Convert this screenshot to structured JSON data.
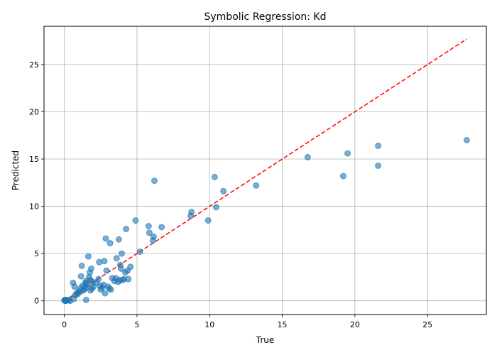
{
  "chart_data": {
    "type": "scatter",
    "title": "Symbolic Regression: Kd",
    "xlabel": "True",
    "ylabel": "Predicted",
    "xlim": [
      -1.4,
      29.05
    ],
    "ylim": [
      -1.45,
      29.05
    ],
    "xticks": [
      0,
      5,
      10,
      15,
      20,
      25
    ],
    "yticks": [
      0,
      5,
      10,
      15,
      20,
      25
    ],
    "grid": true,
    "point_color": "#1f77b4",
    "point_alpha": 0.6,
    "reference_line": {
      "style": "dashed",
      "color": "#ff0000",
      "x": [
        0,
        27.7
      ],
      "y": [
        0,
        27.7
      ]
    },
    "points": [
      {
        "x": 0.0,
        "y": 0.05
      },
      {
        "x": 0.05,
        "y": 0.1
      },
      {
        "x": 0.1,
        "y": 0.0
      },
      {
        "x": 0.2,
        "y": 0.05
      },
      {
        "x": 0.3,
        "y": 0.1
      },
      {
        "x": 0.4,
        "y": 0.0
      },
      {
        "x": 0.05,
        "y": 0.0
      },
      {
        "x": 0.15,
        "y": 0.08
      },
      {
        "x": 0.65,
        "y": 0.2
      },
      {
        "x": 0.6,
        "y": 1.9
      },
      {
        "x": 0.7,
        "y": 1.5
      },
      {
        "x": 0.75,
        "y": 0.6
      },
      {
        "x": 0.85,
        "y": 0.8
      },
      {
        "x": 0.9,
        "y": 0.7
      },
      {
        "x": 1.0,
        "y": 1.0
      },
      {
        "x": 1.05,
        "y": 0.9
      },
      {
        "x": 1.1,
        "y": 1.3
      },
      {
        "x": 1.15,
        "y": 2.6
      },
      {
        "x": 1.2,
        "y": 3.7
      },
      {
        "x": 1.25,
        "y": 1.6
      },
      {
        "x": 1.3,
        "y": 1.1
      },
      {
        "x": 1.35,
        "y": 1.2
      },
      {
        "x": 1.4,
        "y": 1.5
      },
      {
        "x": 1.45,
        "y": 1.9
      },
      {
        "x": 1.5,
        "y": 2.1
      },
      {
        "x": 1.5,
        "y": 0.1
      },
      {
        "x": 1.55,
        "y": 1.4
      },
      {
        "x": 1.6,
        "y": 1.8
      },
      {
        "x": 1.65,
        "y": 4.7
      },
      {
        "x": 1.7,
        "y": 2.5
      },
      {
        "x": 1.75,
        "y": 3.0
      },
      {
        "x": 1.8,
        "y": 2.2
      },
      {
        "x": 1.8,
        "y": 1.1
      },
      {
        "x": 1.85,
        "y": 3.4
      },
      {
        "x": 1.9,
        "y": 1.3
      },
      {
        "x": 1.95,
        "y": 2.0
      },
      {
        "x": 2.0,
        "y": 1.5
      },
      {
        "x": 2.2,
        "y": 1.9
      },
      {
        "x": 2.35,
        "y": 2.3
      },
      {
        "x": 2.4,
        "y": 4.1
      },
      {
        "x": 2.45,
        "y": 1.6
      },
      {
        "x": 2.5,
        "y": 1.2
      },
      {
        "x": 2.6,
        "y": 1.4
      },
      {
        "x": 2.7,
        "y": 1.7
      },
      {
        "x": 2.75,
        "y": 4.2
      },
      {
        "x": 2.8,
        "y": 0.8
      },
      {
        "x": 2.85,
        "y": 6.6
      },
      {
        "x": 2.9,
        "y": 3.2
      },
      {
        "x": 3.0,
        "y": 1.5
      },
      {
        "x": 3.1,
        "y": 1.3
      },
      {
        "x": 3.15,
        "y": 6.1
      },
      {
        "x": 3.2,
        "y": 1.2
      },
      {
        "x": 3.3,
        "y": 2.4
      },
      {
        "x": 3.45,
        "y": 2.1
      },
      {
        "x": 3.55,
        "y": 2.4
      },
      {
        "x": 3.6,
        "y": 4.5
      },
      {
        "x": 3.7,
        "y": 2.0
      },
      {
        "x": 3.75,
        "y": 6.5
      },
      {
        "x": 3.8,
        "y": 2.2
      },
      {
        "x": 3.85,
        "y": 3.8
      },
      {
        "x": 3.9,
        "y": 3.4
      },
      {
        "x": 3.95,
        "y": 5.0
      },
      {
        "x": 4.0,
        "y": 2.2
      },
      {
        "x": 4.1,
        "y": 2.3
      },
      {
        "x": 4.2,
        "y": 3.0
      },
      {
        "x": 4.25,
        "y": 7.6
      },
      {
        "x": 4.35,
        "y": 3.2
      },
      {
        "x": 4.4,
        "y": 2.3
      },
      {
        "x": 4.55,
        "y": 3.6
      },
      {
        "x": 4.9,
        "y": 8.5
      },
      {
        "x": 5.2,
        "y": 5.2
      },
      {
        "x": 5.8,
        "y": 7.9
      },
      {
        "x": 5.85,
        "y": 7.2
      },
      {
        "x": 6.1,
        "y": 6.4
      },
      {
        "x": 6.15,
        "y": 6.8
      },
      {
        "x": 6.2,
        "y": 12.7
      },
      {
        "x": 6.7,
        "y": 7.8
      },
      {
        "x": 8.7,
        "y": 9.0
      },
      {
        "x": 8.75,
        "y": 9.4
      },
      {
        "x": 9.9,
        "y": 8.5
      },
      {
        "x": 10.35,
        "y": 13.1
      },
      {
        "x": 10.45,
        "y": 9.9
      },
      {
        "x": 10.95,
        "y": 11.6
      },
      {
        "x": 13.2,
        "y": 12.2
      },
      {
        "x": 16.75,
        "y": 15.2
      },
      {
        "x": 19.2,
        "y": 13.2
      },
      {
        "x": 19.5,
        "y": 15.6
      },
      {
        "x": 21.6,
        "y": 16.4
      },
      {
        "x": 21.6,
        "y": 14.3
      },
      {
        "x": 27.7,
        "y": 17.0
      }
    ]
  }
}
